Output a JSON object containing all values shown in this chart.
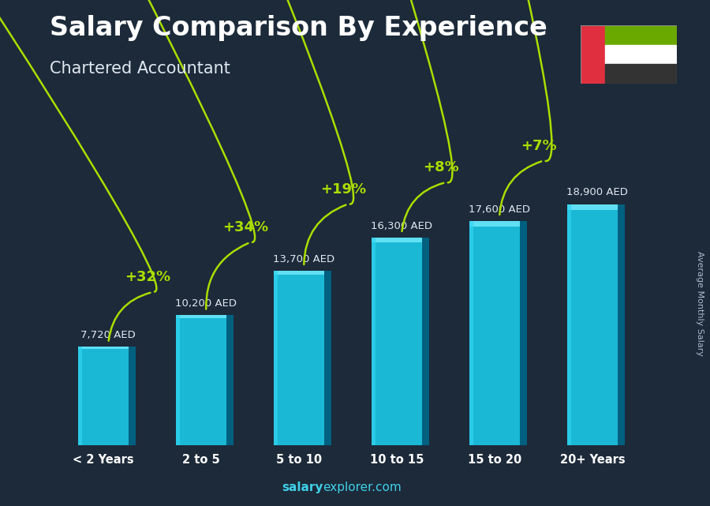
{
  "title": "Salary Comparison By Experience",
  "subtitle": "Chartered Accountant",
  "categories": [
    "< 2 Years",
    "2 to 5",
    "5 to 10",
    "10 to 15",
    "15 to 20",
    "20+ Years"
  ],
  "values": [
    7720,
    10200,
    13700,
    16300,
    17600,
    18900
  ],
  "labels": [
    "7,720 AED",
    "10,200 AED",
    "13,700 AED",
    "16,300 AED",
    "17,600 AED",
    "18,900 AED"
  ],
  "pct_changes": [
    "+32%",
    "+34%",
    "+19%",
    "+8%",
    "+7%"
  ],
  "bar_color_main": "#1ab8d4",
  "bar_color_light": "#30d4f0",
  "bar_color_dark": "#0088a8",
  "bar_color_side": "#006080",
  "bar_color_top": "#60e0f4",
  "bg_color": "#1c2a3a",
  "title_color": "#ffffff",
  "subtitle_color": "#e0e8f0",
  "label_color": "#e0e8f0",
  "pct_color": "#aadd00",
  "arrow_color": "#aadd00",
  "watermark_bold": "salary",
  "watermark_normal": "explorer.com",
  "side_label": "Average Monthly Salary",
  "ylim": [
    0,
    23000
  ],
  "flag_green": "#6aaa00",
  "flag_white": "#ffffff",
  "flag_black": "#333333",
  "flag_red": "#e03040"
}
